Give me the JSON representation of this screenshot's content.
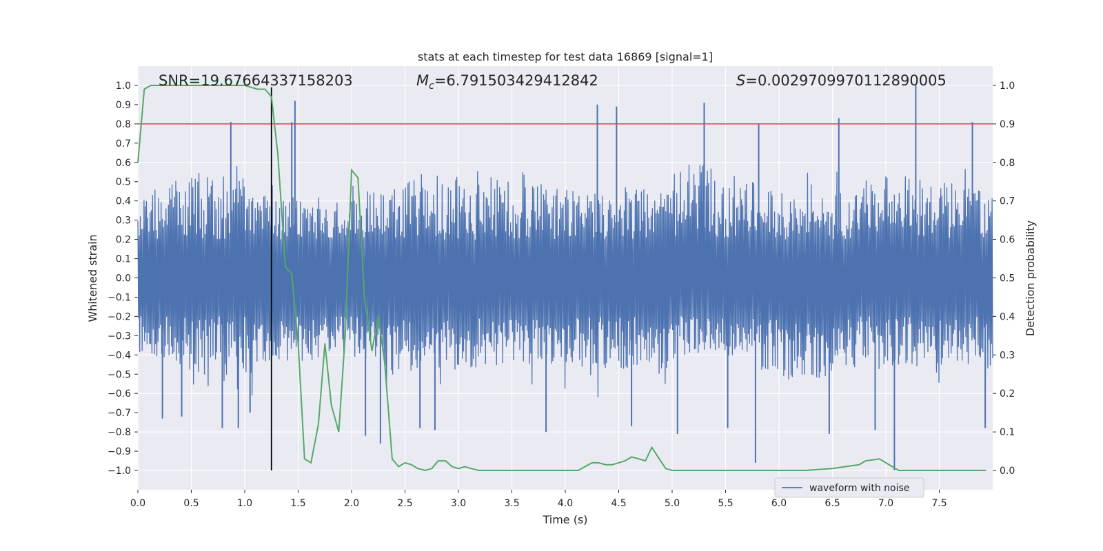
{
  "chart_data": {
    "type": "line",
    "title": "stats at each timestep for test data 16869 [signal=1]",
    "xlabel": "Time (s)",
    "ylabel": "Whitened strain",
    "y2label": "Detection probability",
    "xlim": [
      0.0,
      8.0
    ],
    "ylim": [
      -1.1,
      1.1
    ],
    "y2lim": [
      -0.05,
      1.05
    ],
    "xticks": [
      0.0,
      0.5,
      1.0,
      1.5,
      2.0,
      2.5,
      3.0,
      3.5,
      4.0,
      4.5,
      5.0,
      5.5,
      6.0,
      6.5,
      7.0,
      7.5
    ],
    "yticks": [
      -1.0,
      -0.9,
      -0.8,
      -0.7,
      -0.6,
      -0.5,
      -0.4,
      -0.3,
      -0.2,
      -0.1,
      0.0,
      0.1,
      0.2,
      0.3,
      0.4,
      0.5,
      0.6,
      0.7,
      0.8,
      0.9,
      1.0
    ],
    "y2ticks": [
      0.0,
      0.1,
      0.2,
      0.3,
      0.4,
      0.5,
      0.6,
      0.7,
      0.8,
      0.9,
      1.0
    ],
    "annotations": {
      "snr": "SNR=19.67664337158203",
      "mc_symbol": "M",
      "mc_sub": "c",
      "mc_value": "=6.791503429412842",
      "s_symbol": "S",
      "s_value": "=0.0029709970112890005"
    },
    "threshold": {
      "y2": 0.9,
      "color": "#c44e52"
    },
    "marker_time": 1.25,
    "waveform": {
      "name": "waveform with noise",
      "color": "#4c72b0",
      "envelope_upper": [
        0.45,
        0.6,
        0.35,
        0.55,
        0.5,
        0.45,
        0.6,
        0.4,
        0.55,
        0.45
      ],
      "envelope_lower": [
        -0.4,
        -0.55,
        -0.4,
        -0.5,
        -0.45,
        -0.5,
        -0.4,
        -0.55,
        -0.45,
        -0.5
      ],
      "spikes": [
        [
          0.87,
          0.81
        ],
        [
          1.47,
          0.92
        ],
        [
          0.23,
          -0.73
        ],
        [
          0.41,
          -0.72
        ],
        [
          0.79,
          -0.78
        ],
        [
          0.94,
          -0.78
        ],
        [
          1.05,
          -0.7
        ],
        [
          1.44,
          0.81
        ],
        [
          2.27,
          -0.86
        ],
        [
          2.64,
          -0.78
        ],
        [
          2.78,
          -0.79
        ],
        [
          4.3,
          0.9
        ],
        [
          4.48,
          0.89
        ],
        [
          5.3,
          0.91
        ],
        [
          5.81,
          0.8
        ],
        [
          5.78,
          -0.96
        ],
        [
          6.56,
          0.83
        ],
        [
          7.28,
          1.0
        ],
        [
          7.08,
          -1.0
        ],
        [
          7.81,
          0.81
        ],
        [
          5.05,
          -0.81
        ],
        [
          6.47,
          -0.81
        ],
        [
          7.93,
          -0.78
        ],
        [
          2.13,
          -0.82
        ],
        [
          3.82,
          -0.8
        ],
        [
          4.62,
          -0.77
        ],
        [
          5.52,
          -0.78
        ],
        [
          6.9,
          -0.79
        ]
      ]
    },
    "probability": {
      "name": "detection probability",
      "color": "#55a868",
      "x": [
        0.0,
        0.06,
        0.12,
        0.19,
        0.25,
        0.31,
        0.38,
        0.5,
        0.62,
        0.75,
        0.88,
        1.0,
        1.06,
        1.12,
        1.19,
        1.25,
        1.31,
        1.38,
        1.44,
        1.5,
        1.56,
        1.62,
        1.69,
        1.75,
        1.81,
        1.88,
        1.94,
        2.0,
        2.06,
        2.12,
        2.19,
        2.25,
        2.31,
        2.38,
        2.44,
        2.5,
        2.56,
        2.62,
        2.69,
        2.75,
        2.81,
        2.88,
        2.94,
        3.0,
        3.06,
        3.12,
        3.19,
        3.25,
        3.5,
        3.75,
        3.94,
        4.0,
        4.12,
        4.25,
        4.31,
        4.38,
        4.44,
        4.5,
        4.56,
        4.62,
        4.69,
        4.75,
        4.81,
        4.88,
        4.94,
        5.0,
        5.25,
        5.5,
        5.75,
        6.0,
        6.25,
        6.5,
        6.62,
        6.75,
        6.81,
        6.94,
        7.0,
        7.06,
        7.12,
        7.25,
        7.5,
        7.75,
        7.88,
        7.94
      ],
      "y": [
        0.8,
        0.99,
        1.0,
        1.0,
        1.0,
        1.0,
        1.0,
        1.0,
        1.0,
        1.0,
        1.0,
        1.0,
        0.995,
        0.99,
        0.99,
        0.97,
        0.82,
        0.53,
        0.51,
        0.33,
        0.03,
        0.02,
        0.12,
        0.33,
        0.17,
        0.1,
        0.35,
        0.78,
        0.76,
        0.45,
        0.31,
        0.4,
        0.28,
        0.03,
        0.01,
        0.02,
        0.015,
        0.005,
        0.0,
        0.005,
        0.025,
        0.025,
        0.01,
        0.005,
        0.01,
        0.005,
        0.0,
        0.0,
        0.0,
        0.0,
        0.0,
        0.0,
        0.0,
        0.02,
        0.02,
        0.015,
        0.015,
        0.02,
        0.025,
        0.035,
        0.03,
        0.025,
        0.06,
        0.03,
        0.005,
        0.0,
        0.0,
        0.0,
        0.0,
        0.0,
        0.0,
        0.005,
        0.01,
        0.015,
        0.025,
        0.03,
        0.02,
        0.01,
        0.0,
        0.0,
        0.0,
        0.0,
        0.0,
        0.0
      ]
    },
    "legend": {
      "entries": [
        "waveform with noise"
      ],
      "placement": "bottom-right"
    },
    "grid": true,
    "colors": {
      "background": "#eaeaf2",
      "grid": "#ffffff",
      "marker_line": "#000000"
    }
  }
}
